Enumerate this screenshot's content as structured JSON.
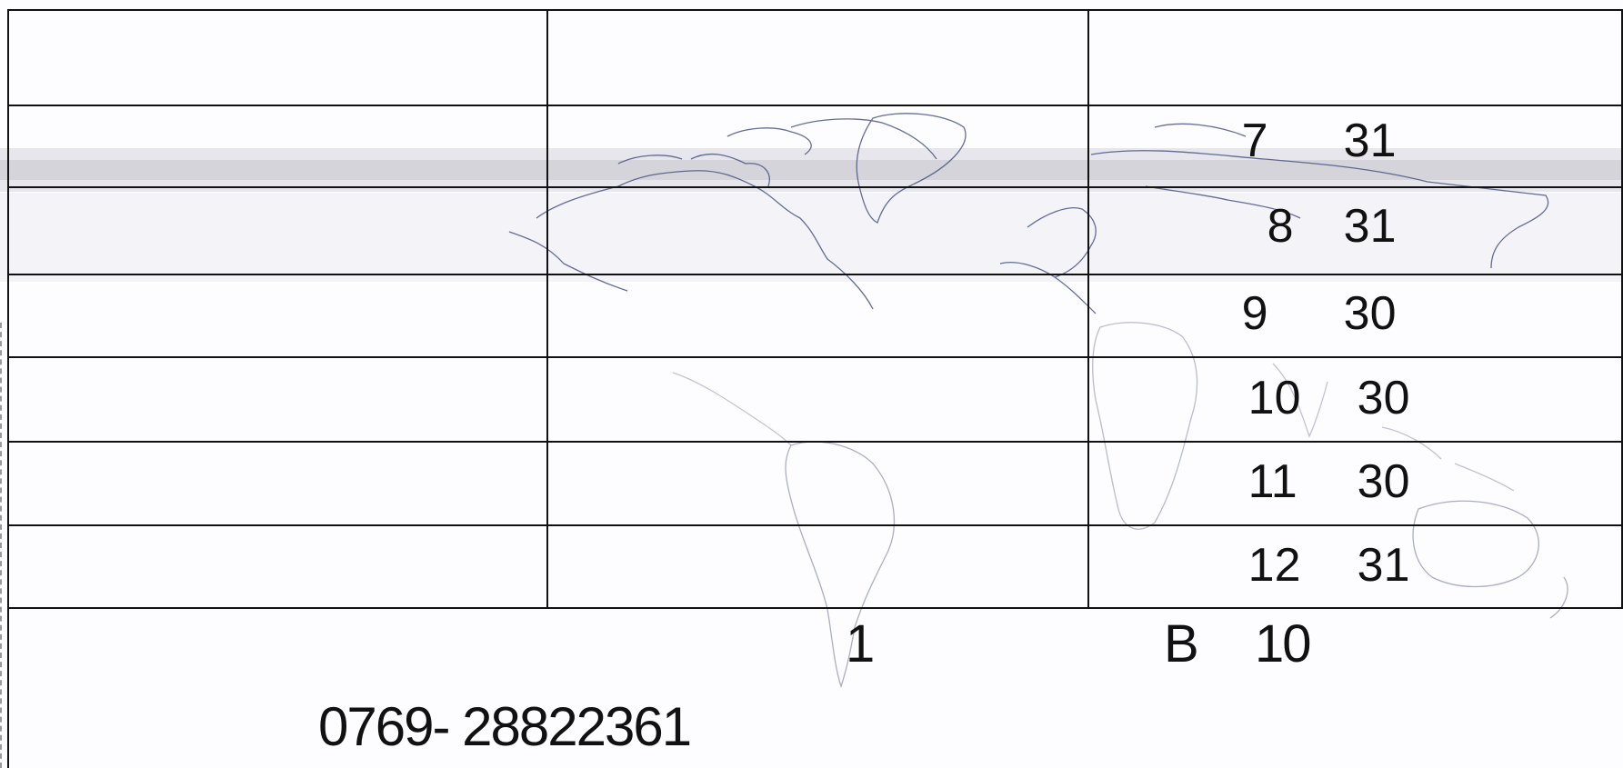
{
  "table": {
    "rows": [
      {
        "month": "",
        "days": ""
      },
      {
        "month": "7",
        "days": "31"
      },
      {
        "month": "8",
        "days": "31"
      },
      {
        "month": "9",
        "days": "30"
      },
      {
        "month": "10",
        "days": "30"
      },
      {
        "month": "11",
        "days": "30"
      },
      {
        "month": "12",
        "days": "31"
      }
    ]
  },
  "footer": {
    "count": "1",
    "grade": "B",
    "grade_value": "10",
    "phone": "0769- 28822361"
  },
  "colors": {
    "line": "#111111",
    "map_outline": "#4a5580",
    "band": "#d6d6dc"
  }
}
